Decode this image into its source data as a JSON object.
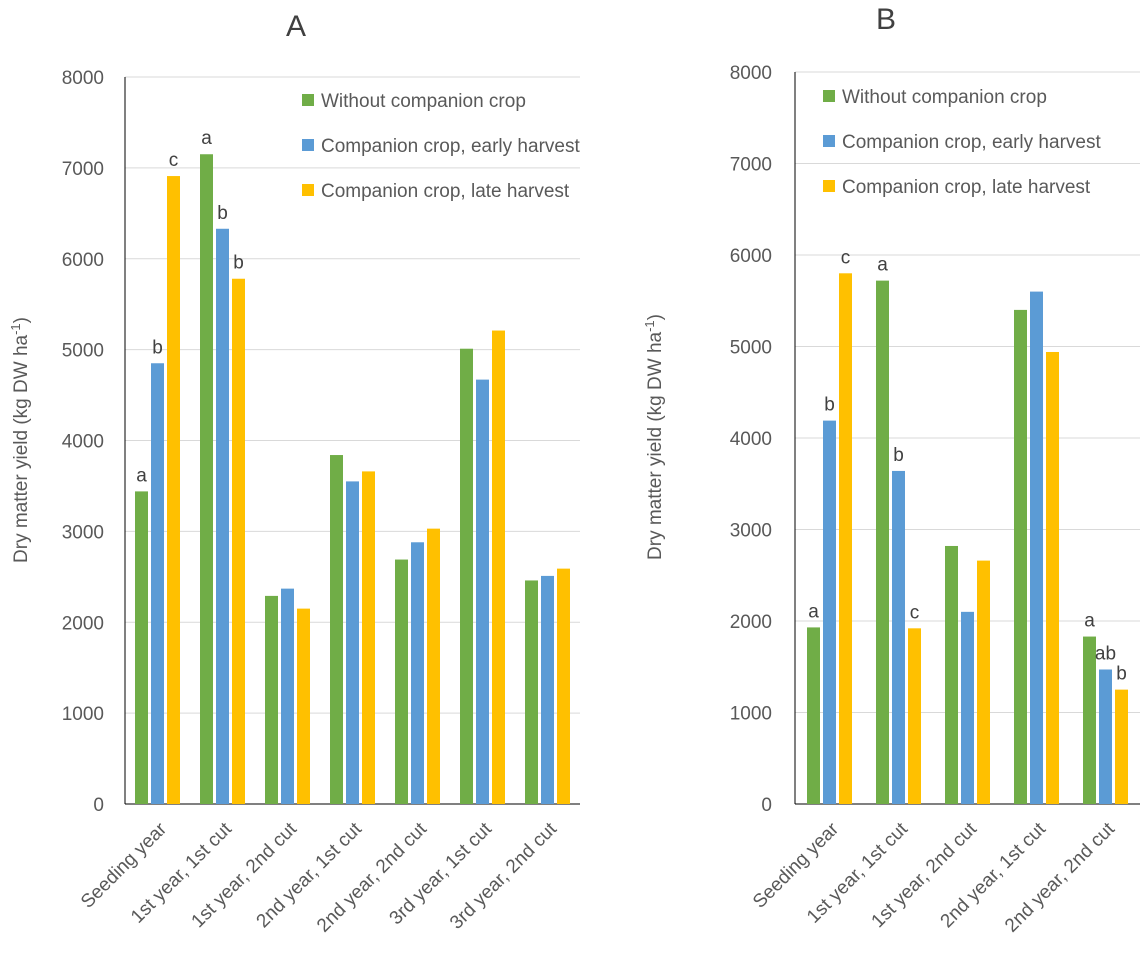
{
  "colors": {
    "without": "#70ad47",
    "early": "#5b9bd5",
    "late": "#ffc000"
  },
  "chart_data": [
    {
      "type": "bar",
      "title": "A",
      "ylabel": "Dry matter yield (kg DW ha",
      "ylabel_sup": "-1",
      "ylabel_end": ")",
      "ylim": [
        0,
        8000
      ],
      "yticks": [
        0,
        1000,
        2000,
        3000,
        4000,
        5000,
        6000,
        7000,
        8000
      ],
      "grid": true,
      "legend_position": "top-right",
      "categories": [
        "Seeding year",
        "1st year, 1st cut",
        "1st year, 2nd cut",
        "2nd year, 1st cut",
        "2nd year, 2nd cut",
        "3rd year, 1st cut",
        "3rd year, 2nd cut"
      ],
      "series": [
        {
          "name": "Without companion crop",
          "color_key": "without",
          "values": [
            3440,
            7150,
            2290,
            3840,
            2690,
            5010,
            2460
          ],
          "labels": [
            "a",
            "a",
            "",
            "",
            "",
            "",
            ""
          ]
        },
        {
          "name": "Companion crop, early harvest",
          "color_key": "early",
          "values": [
            4850,
            6330,
            2370,
            3550,
            2880,
            4670,
            2510
          ],
          "labels": [
            "b",
            "b",
            "",
            "",
            "",
            "",
            ""
          ]
        },
        {
          "name": "Companion crop, late harvest",
          "color_key": "late",
          "values": [
            6910,
            5780,
            2150,
            3660,
            3030,
            5210,
            2590
          ],
          "labels": [
            "c",
            "b",
            "",
            "",
            "",
            "",
            ""
          ]
        }
      ]
    },
    {
      "type": "bar",
      "title": "B",
      "ylabel": "Dry matter yield (kg DW ha",
      "ylabel_sup": "-1",
      "ylabel_end": ")",
      "ylim": [
        0,
        8000
      ],
      "yticks": [
        0,
        1000,
        2000,
        3000,
        4000,
        5000,
        6000,
        7000,
        8000
      ],
      "grid": true,
      "legend_position": "top-right",
      "categories": [
        "Seeding year",
        "1st year, 1st cut",
        "1st year, 2nd cut",
        "2nd year, 1st cut",
        "2nd year, 2nd cut"
      ],
      "series": [
        {
          "name": "Without companion crop",
          "color_key": "without",
          "values": [
            1930,
            5720,
            2820,
            5400,
            1830
          ],
          "labels": [
            "a",
            "a",
            "",
            "",
            "a"
          ]
        },
        {
          "name": "Companion crop, early harvest",
          "color_key": "early",
          "values": [
            4190,
            3640,
            2100,
            5600,
            1470
          ],
          "labels": [
            "b",
            "b",
            "",
            "",
            "ab"
          ]
        },
        {
          "name": "Companion crop, late harvest",
          "color_key": "late",
          "values": [
            5800,
            1920,
            2660,
            4940,
            1250
          ],
          "labels": [
            "c",
            "c",
            "",
            "",
            "b"
          ]
        }
      ]
    }
  ]
}
